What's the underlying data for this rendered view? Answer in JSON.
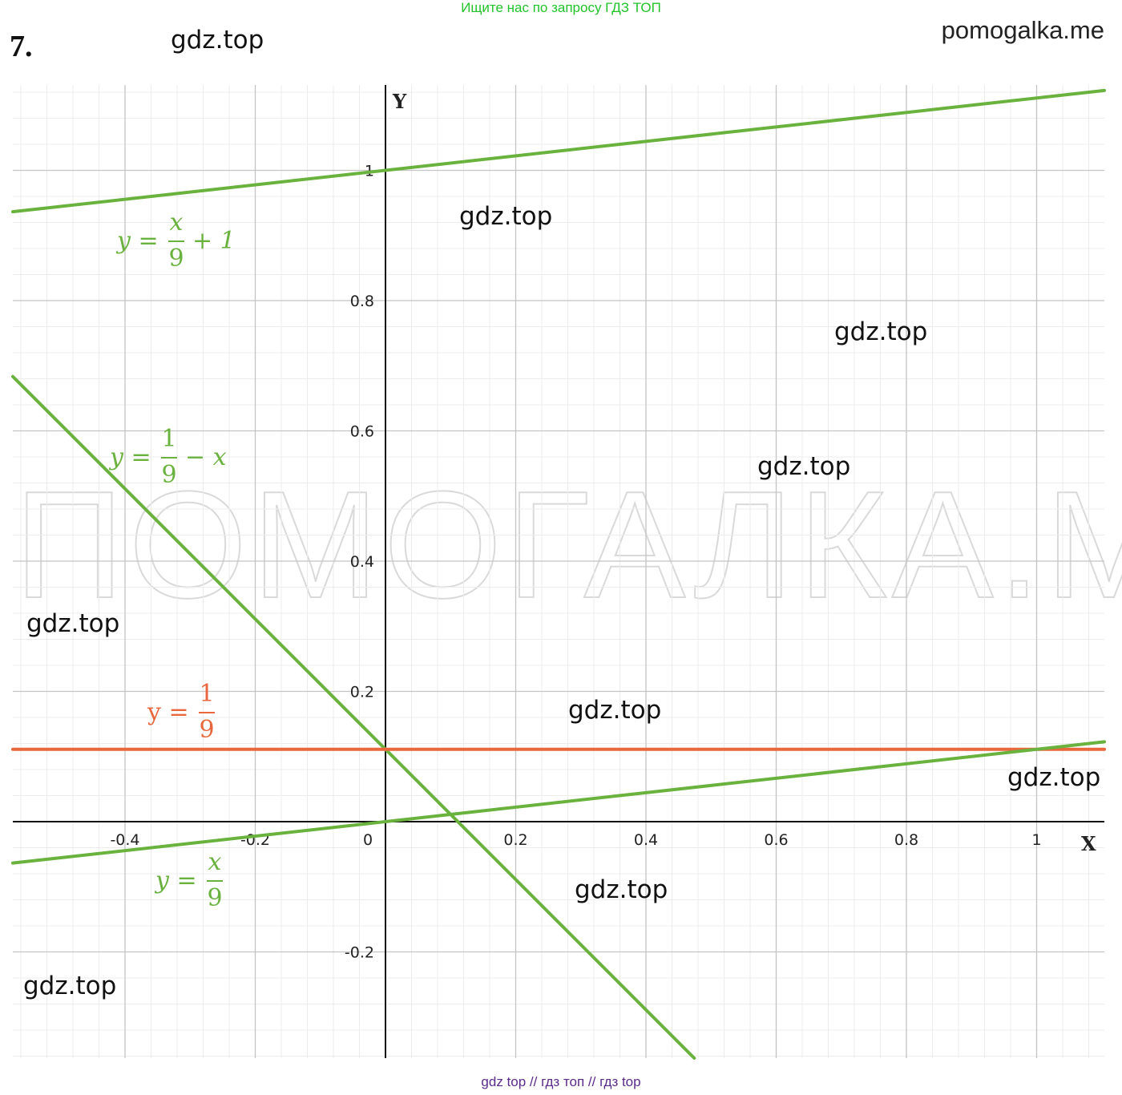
{
  "header": {
    "banner": "Ищите нас по запросу ГДЗ ТОП",
    "site": "pomogalka.me",
    "problem_number": "7."
  },
  "watermarks": {
    "label": "gdz.top",
    "big_text": "ПОМОГАЛКА.МИ"
  },
  "footer": {
    "text": "gdz top  //  гдз топ  //  гдз top"
  },
  "chart_data": {
    "type": "line",
    "xlabel": "X",
    "ylabel": "Y",
    "xlim": [
      -0.57,
      1.11
    ],
    "ylim": [
      -0.365,
      1.135
    ],
    "grid": true,
    "x_ticks": [
      "-0.4",
      "-0.2",
      "0",
      "0.2",
      "0.4",
      "0.6",
      "0.8",
      "1"
    ],
    "y_ticks": [
      "1",
      "0.8",
      "0.6",
      "0.4",
      "0.2",
      "-0.2"
    ],
    "series": [
      {
        "name": "y = x/9 + 1",
        "color": "#6ab23e",
        "slope": 0.1111,
        "intercept": 1.0,
        "label": {
          "lhs": "y =",
          "num": "x",
          "den": "9",
          "rhs": "+ 1"
        }
      },
      {
        "name": "y = 1/9 − x",
        "color": "#6ab23e",
        "slope": -1.0,
        "intercept": 0.1111,
        "label": {
          "lhs": "y =",
          "num": "1",
          "den": "9",
          "rhs": "− x"
        }
      },
      {
        "name": "y = 1/9",
        "color": "#e8673c",
        "slope": 0.0,
        "intercept": 0.1111,
        "label": {
          "lhs": "y =",
          "num": "1",
          "den": "9",
          "rhs": ""
        }
      },
      {
        "name": "y = x/9",
        "color": "#6ab23e",
        "slope": 0.1111,
        "intercept": 0.0,
        "label": {
          "lhs": "y =",
          "num": "x",
          "den": "9",
          "rhs": ""
        }
      }
    ]
  }
}
